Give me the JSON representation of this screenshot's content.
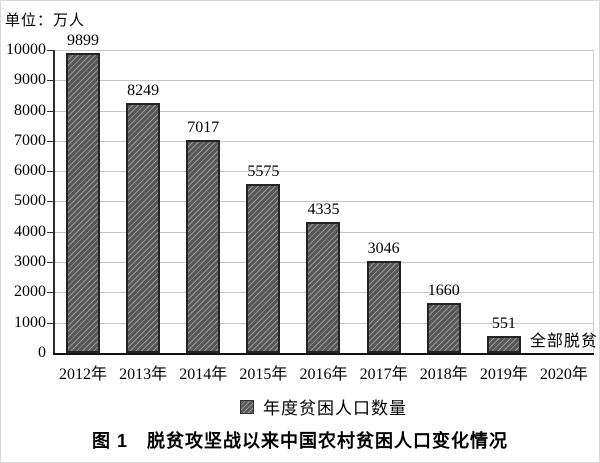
{
  "chart": {
    "unit_label": "单位：万人",
    "legend_label": "年度贫困人口数量",
    "caption": "图 1　脱贫攻坚战以来中国农村贫困人口变化情况"
  },
  "chart_data": {
    "type": "bar",
    "title": "图 1 脱贫攻坚战以来中国农村贫困人口变化情况",
    "unit": "万人",
    "categories": [
      "2012年",
      "2013年",
      "2014年",
      "2015年",
      "2016年",
      "2017年",
      "2018年",
      "2019年",
      "2020年"
    ],
    "values": [
      9899,
      8249,
      7017,
      5575,
      4335,
      3046,
      1660,
      551,
      null
    ],
    "annotations": [
      {
        "category": "2020年",
        "text": "全部脱贫"
      }
    ],
    "legend": [
      "年度贫困人口数量"
    ],
    "legend_position": "bottom",
    "xlabel": "",
    "ylabel": "单位：万人",
    "ylim": [
      0,
      10000
    ],
    "ytick_step": 1000,
    "grid": true,
    "bar_fill_color": "#575757",
    "bar_hatch_color": "#989898",
    "bar_hatch_style": "diagonal-forward",
    "bar_border_color": "#242424",
    "gridline_color": "#c5c5c5"
  }
}
